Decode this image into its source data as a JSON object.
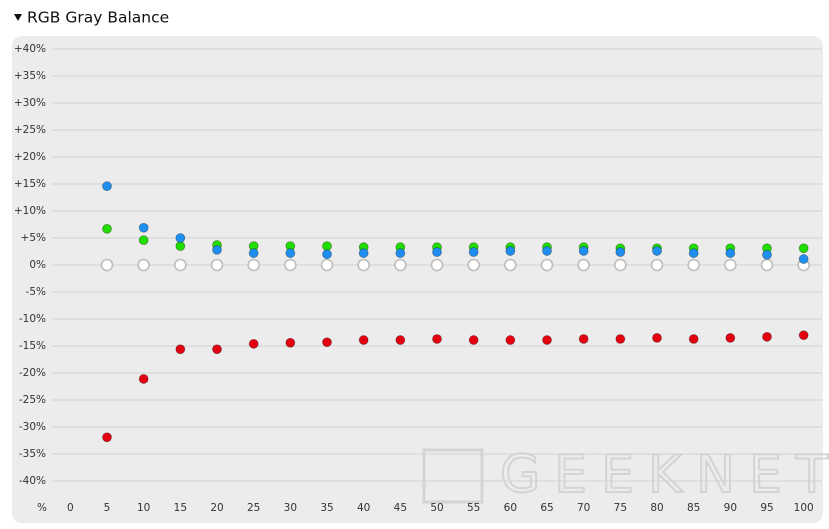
{
  "chart_data": {
    "type": "scatter",
    "title": "RGB Gray Balance",
    "xlabel": "%",
    "watermark": "GEEKNETIC",
    "x": [
      5,
      10,
      15,
      20,
      25,
      30,
      35,
      40,
      45,
      50,
      55,
      60,
      65,
      70,
      75,
      80,
      85,
      90,
      95,
      100
    ],
    "xlim": [
      -2.5,
      102.5
    ],
    "xticks": [
      0,
      5,
      10,
      15,
      20,
      25,
      30,
      35,
      40,
      45,
      50,
      55,
      60,
      65,
      70,
      75,
      80,
      85,
      90,
      95,
      100
    ],
    "ylim": [
      -42.5,
      42.5
    ],
    "yticks": [
      {
        "value": 40,
        "label": "+40%"
      },
      {
        "value": 35,
        "label": "+35%"
      },
      {
        "value": 30,
        "label": "+30%"
      },
      {
        "value": 25,
        "label": "+25%"
      },
      {
        "value": 20,
        "label": "+20%"
      },
      {
        "value": 15,
        "label": "+15%"
      },
      {
        "value": 10,
        "label": "+10%"
      },
      {
        "value": 5,
        "label": "+5%"
      },
      {
        "value": 0,
        "label": "0%"
      },
      {
        "value": -5,
        "label": "-5%"
      },
      {
        "value": -10,
        "label": "-10%"
      },
      {
        "value": -15,
        "label": "-15%"
      },
      {
        "value": -20,
        "label": "-20%"
      },
      {
        "value": -25,
        "label": "-25%"
      },
      {
        "value": -30,
        "label": "-30%"
      },
      {
        "value": -35,
        "label": "-35%"
      },
      {
        "value": -40,
        "label": "-40%"
      }
    ],
    "grid": true,
    "series": [
      {
        "color": "#ffffff",
        "hollow": true,
        "values": [
          0,
          0,
          0,
          0,
          0,
          0,
          0,
          0,
          0,
          0,
          0,
          0,
          0,
          0,
          0,
          0,
          0,
          0,
          0,
          0
        ]
      },
      {
        "color": "#e3000f",
        "values": [
          -31.9,
          -21.1,
          -15.6,
          -15.6,
          -14.6,
          -14.4,
          -14.3,
          -13.9,
          -13.9,
          -13.7,
          -13.9,
          -13.9,
          -13.9,
          -13.7,
          -13.7,
          -13.5,
          -13.7,
          -13.5,
          -13.3,
          -13.0
        ]
      },
      {
        "color": "#22dd00",
        "values": [
          6.7,
          4.6,
          3.5,
          3.7,
          3.5,
          3.5,
          3.5,
          3.3,
          3.3,
          3.3,
          3.3,
          3.3,
          3.3,
          3.3,
          3.1,
          3.1,
          3.1,
          3.1,
          3.1,
          3.1
        ]
      },
      {
        "color": "#1e8ff0",
        "values": [
          14.6,
          6.9,
          5.0,
          2.8,
          2.2,
          2.2,
          2.0,
          2.2,
          2.2,
          2.4,
          2.4,
          2.6,
          2.6,
          2.6,
          2.4,
          2.6,
          2.2,
          2.2,
          1.9,
          1.1
        ]
      }
    ]
  }
}
